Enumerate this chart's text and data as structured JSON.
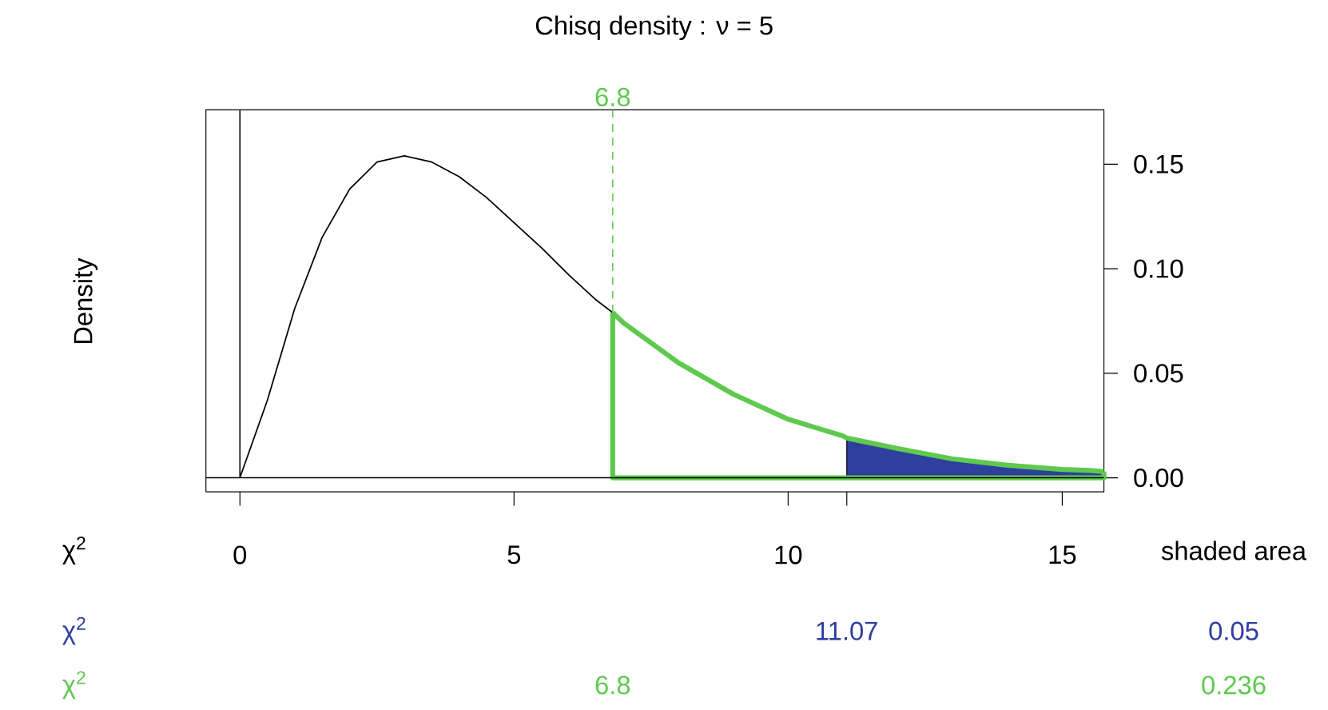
{
  "chart_data": {
    "type": "line",
    "title": "Chisq density :  ν = 5",
    "ylabel": "Density",
    "xlim": [
      -0.62,
      15.76
    ],
    "ylim": [
      -0.0067,
      0.176
    ],
    "xticks": [
      0,
      5,
      10,
      15,
      {
        "value": 11.07,
        "label": null
      }
    ],
    "yticks": [
      {
        "value": 0,
        "label": "0.00"
      },
      {
        "value": 0.05,
        "label": "0.05"
      },
      {
        "value": 0.1,
        "label": "0.10"
      },
      {
        "value": 0.15,
        "label": "0.15"
      }
    ],
    "series": [
      {
        "color": "#000000",
        "x": [
          0,
          0.5,
          1,
          1.5,
          2,
          2.5,
          3,
          3.5,
          4,
          4.5,
          5,
          5.5,
          6,
          6.5,
          6.8
        ],
        "values": [
          0,
          0.037,
          0.081,
          0.115,
          0.138,
          0.151,
          0.154,
          0.151,
          0.144,
          0.134,
          0.122,
          0.11,
          0.097,
          0.085,
          0.079
        ]
      },
      {
        "type": "area",
        "color": "#2e3f9e",
        "x": [
          11.07,
          12,
          13,
          14,
          15,
          15.5,
          15.76
        ],
        "values": [
          0.019,
          0.014,
          0.009,
          0.006,
          0.004,
          0.0035,
          0.003
        ]
      },
      {
        "color": "#5fc94f",
        "x": [
          6.8,
          7,
          8,
          9,
          10,
          11,
          11.07,
          12,
          13,
          14,
          15,
          15.5,
          15.76
        ],
        "values": [
          0.079,
          0.074,
          0.055,
          0.04,
          0.028,
          0.02,
          0.019,
          0.014,
          0.009,
          0.006,
          0.004,
          0.0035,
          0.003
        ]
      }
    ],
    "ref_lines": [
      {
        "axis": "y",
        "value": 0,
        "color": "#000000",
        "line_style": "solid"
      },
      {
        "axis": "x",
        "value": 0,
        "color": "#000000",
        "line_style": "solid"
      },
      {
        "axis": "x",
        "value": 6.8,
        "label": "6.8",
        "color": "#5fc94f",
        "line_style": "dashed"
      }
    ],
    "annotations": [
      "χ$^{2}$",
      "shaded area",
      "χ$^{2}$",
      "11.07",
      "0.05",
      "χ$^{2}$",
      "6.8",
      "0.236"
    ]
  }
}
